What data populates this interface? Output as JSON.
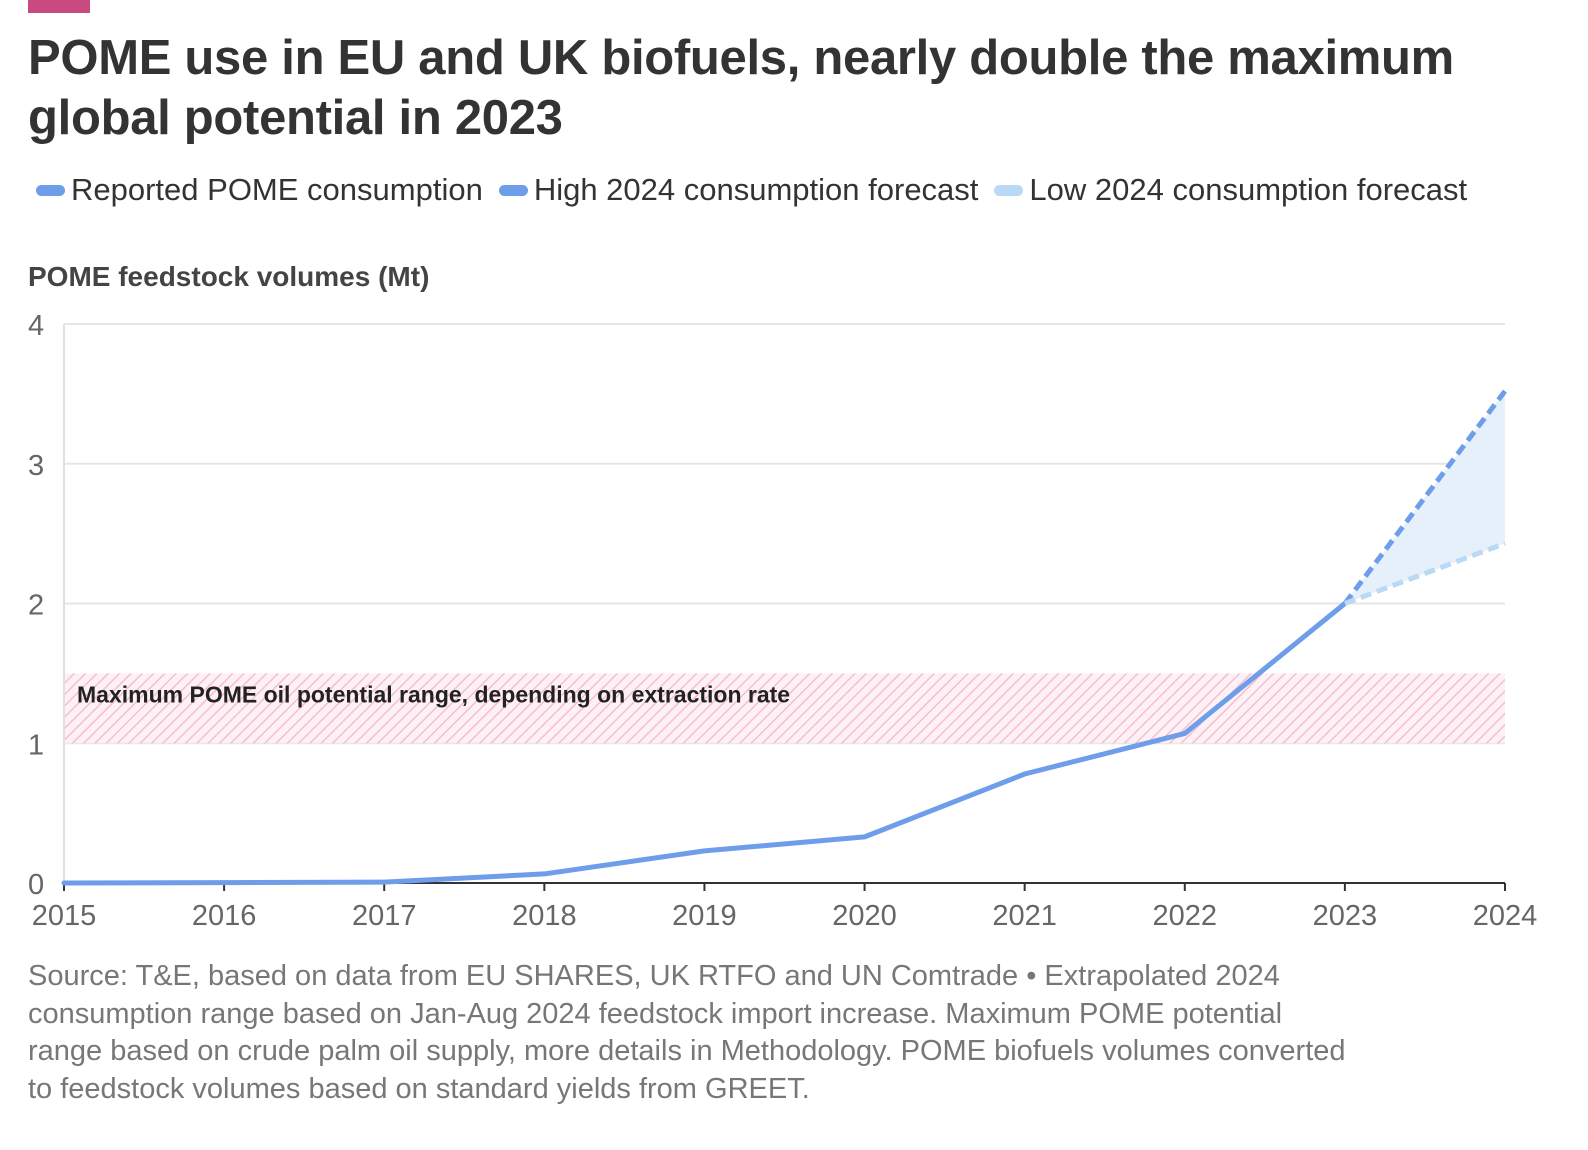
{
  "header": {
    "title": "POME use in EU and UK biofuels, nearly double the maximum global potential in 2023",
    "accent_color": "#c94a80"
  },
  "legend": [
    {
      "label": "Reported POME consumption",
      "color": "#6e9de9"
    },
    {
      "label": "High 2024 consumption forecast",
      "color": "#6e9de9"
    },
    {
      "label": "Low 2024 consumption forecast",
      "color": "#b9d9f4"
    }
  ],
  "chart_data": {
    "type": "line",
    "ylabel": "POME feedstock volumes (Mt)",
    "ylim": [
      0,
      4
    ],
    "yticks": [
      "0",
      "1",
      "2",
      "3",
      "4"
    ],
    "categories": [
      "2015",
      "2016",
      "2017",
      "2018",
      "2019",
      "2020",
      "2021",
      "2022",
      "2023",
      "2024"
    ],
    "series": [
      {
        "name": "Reported POME consumption",
        "x": [
          "2015",
          "2016",
          "2017",
          "2018",
          "2019",
          "2020",
          "2021",
          "2022",
          "2023"
        ],
        "values": [
          0,
          0.003,
          0.006,
          0.065,
          0.23,
          0.33,
          0.78,
          1.07,
          2.0
        ],
        "color": "#6e9de9",
        "style": "solid"
      },
      {
        "name": "High 2024 consumption forecast",
        "x": [
          "2023",
          "2024"
        ],
        "values": [
          2.0,
          3.52
        ],
        "color": "#6e9de9",
        "style": "dashed"
      },
      {
        "name": "Low 2024 consumption forecast",
        "x": [
          "2023",
          "2024"
        ],
        "values": [
          2.0,
          2.43
        ],
        "color": "#b9d9f4",
        "style": "dashed"
      }
    ],
    "band": {
      "label": "Maximum POME oil potential range, depending on extraction rate",
      "ymin": 1.0,
      "ymax": 1.5,
      "color": "#f3b3c9"
    },
    "forecast_fill_color": "#e6f0fa",
    "grid": true
  },
  "footer": {
    "source": "Source: T&E, based on data from EU SHARES, UK RTFO and UN Comtrade • Extrapolated 2024 consumption range based on Jan-Aug 2024 feedstock import increase. Maximum POME potential range based on crude palm oil supply, more details in Methodology. POME biofuels volumes converted to feedstock volumes based on standard yields from GREET."
  }
}
